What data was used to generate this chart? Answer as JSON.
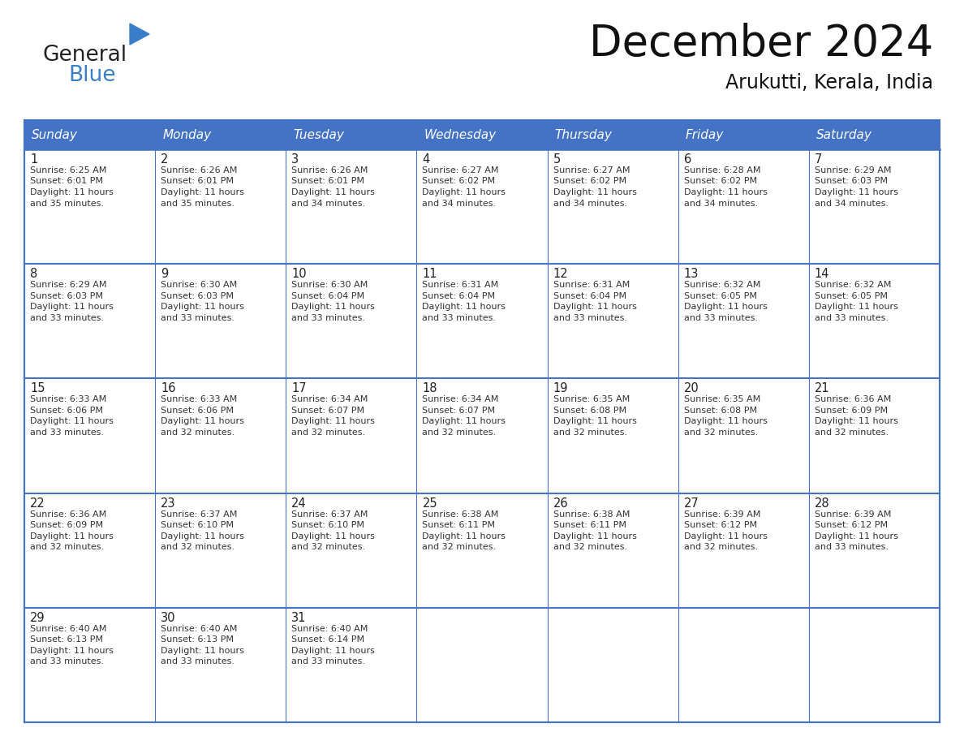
{
  "title": "December 2024",
  "subtitle": "Arukutti, Kerala, India",
  "days_of_week": [
    "Sunday",
    "Monday",
    "Tuesday",
    "Wednesday",
    "Thursday",
    "Friday",
    "Saturday"
  ],
  "header_bg_color": "#4472C4",
  "header_text_color": "#FFFFFF",
  "border_color": "#4472C4",
  "row_line_color": "#4472C4",
  "cell_text_color": "#333333",
  "day_num_color": "#222222",
  "title_color": "#111111",
  "subtitle_color": "#111111",
  "logo_text1_color": "#222222",
  "logo_text2_color": "#3A7DC9",
  "logo_triangle_color": "#3A7DC9",
  "weeks": [
    [
      {
        "day": 1,
        "sunrise": "6:25 AM",
        "sunset": "6:01 PM",
        "daylight_hours": 11,
        "daylight_minutes": 35
      },
      {
        "day": 2,
        "sunrise": "6:26 AM",
        "sunset": "6:01 PM",
        "daylight_hours": 11,
        "daylight_minutes": 35
      },
      {
        "day": 3,
        "sunrise": "6:26 AM",
        "sunset": "6:01 PM",
        "daylight_hours": 11,
        "daylight_minutes": 34
      },
      {
        "day": 4,
        "sunrise": "6:27 AM",
        "sunset": "6:02 PM",
        "daylight_hours": 11,
        "daylight_minutes": 34
      },
      {
        "day": 5,
        "sunrise": "6:27 AM",
        "sunset": "6:02 PM",
        "daylight_hours": 11,
        "daylight_minutes": 34
      },
      {
        "day": 6,
        "sunrise": "6:28 AM",
        "sunset": "6:02 PM",
        "daylight_hours": 11,
        "daylight_minutes": 34
      },
      {
        "day": 7,
        "sunrise": "6:29 AM",
        "sunset": "6:03 PM",
        "daylight_hours": 11,
        "daylight_minutes": 34
      }
    ],
    [
      {
        "day": 8,
        "sunrise": "6:29 AM",
        "sunset": "6:03 PM",
        "daylight_hours": 11,
        "daylight_minutes": 33
      },
      {
        "day": 9,
        "sunrise": "6:30 AM",
        "sunset": "6:03 PM",
        "daylight_hours": 11,
        "daylight_minutes": 33
      },
      {
        "day": 10,
        "sunrise": "6:30 AM",
        "sunset": "6:04 PM",
        "daylight_hours": 11,
        "daylight_minutes": 33
      },
      {
        "day": 11,
        "sunrise": "6:31 AM",
        "sunset": "6:04 PM",
        "daylight_hours": 11,
        "daylight_minutes": 33
      },
      {
        "day": 12,
        "sunrise": "6:31 AM",
        "sunset": "6:04 PM",
        "daylight_hours": 11,
        "daylight_minutes": 33
      },
      {
        "day": 13,
        "sunrise": "6:32 AM",
        "sunset": "6:05 PM",
        "daylight_hours": 11,
        "daylight_minutes": 33
      },
      {
        "day": 14,
        "sunrise": "6:32 AM",
        "sunset": "6:05 PM",
        "daylight_hours": 11,
        "daylight_minutes": 33
      }
    ],
    [
      {
        "day": 15,
        "sunrise": "6:33 AM",
        "sunset": "6:06 PM",
        "daylight_hours": 11,
        "daylight_minutes": 33
      },
      {
        "day": 16,
        "sunrise": "6:33 AM",
        "sunset": "6:06 PM",
        "daylight_hours": 11,
        "daylight_minutes": 32
      },
      {
        "day": 17,
        "sunrise": "6:34 AM",
        "sunset": "6:07 PM",
        "daylight_hours": 11,
        "daylight_minutes": 32
      },
      {
        "day": 18,
        "sunrise": "6:34 AM",
        "sunset": "6:07 PM",
        "daylight_hours": 11,
        "daylight_minutes": 32
      },
      {
        "day": 19,
        "sunrise": "6:35 AM",
        "sunset": "6:08 PM",
        "daylight_hours": 11,
        "daylight_minutes": 32
      },
      {
        "day": 20,
        "sunrise": "6:35 AM",
        "sunset": "6:08 PM",
        "daylight_hours": 11,
        "daylight_minutes": 32
      },
      {
        "day": 21,
        "sunrise": "6:36 AM",
        "sunset": "6:09 PM",
        "daylight_hours": 11,
        "daylight_minutes": 32
      }
    ],
    [
      {
        "day": 22,
        "sunrise": "6:36 AM",
        "sunset": "6:09 PM",
        "daylight_hours": 11,
        "daylight_minutes": 32
      },
      {
        "day": 23,
        "sunrise": "6:37 AM",
        "sunset": "6:10 PM",
        "daylight_hours": 11,
        "daylight_minutes": 32
      },
      {
        "day": 24,
        "sunrise": "6:37 AM",
        "sunset": "6:10 PM",
        "daylight_hours": 11,
        "daylight_minutes": 32
      },
      {
        "day": 25,
        "sunrise": "6:38 AM",
        "sunset": "6:11 PM",
        "daylight_hours": 11,
        "daylight_minutes": 32
      },
      {
        "day": 26,
        "sunrise": "6:38 AM",
        "sunset": "6:11 PM",
        "daylight_hours": 11,
        "daylight_minutes": 32
      },
      {
        "day": 27,
        "sunrise": "6:39 AM",
        "sunset": "6:12 PM",
        "daylight_hours": 11,
        "daylight_minutes": 32
      },
      {
        "day": 28,
        "sunrise": "6:39 AM",
        "sunset": "6:12 PM",
        "daylight_hours": 11,
        "daylight_minutes": 33
      }
    ],
    [
      {
        "day": 29,
        "sunrise": "6:40 AM",
        "sunset": "6:13 PM",
        "daylight_hours": 11,
        "daylight_minutes": 33
      },
      {
        "day": 30,
        "sunrise": "6:40 AM",
        "sunset": "6:13 PM",
        "daylight_hours": 11,
        "daylight_minutes": 33
      },
      {
        "day": 31,
        "sunrise": "6:40 AM",
        "sunset": "6:14 PM",
        "daylight_hours": 11,
        "daylight_minutes": 33
      },
      null,
      null,
      null,
      null
    ]
  ]
}
